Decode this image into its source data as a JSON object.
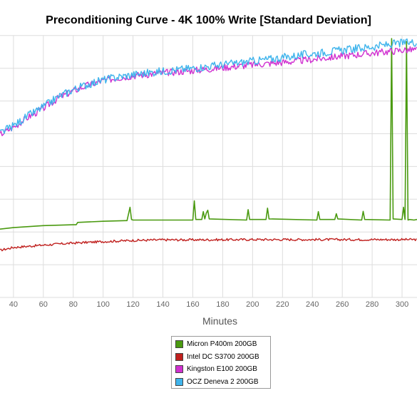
{
  "chart_data": {
    "type": "line",
    "title": "Preconditioning Curve - 4K 100% Write [Standard Deviation]",
    "xlabel": "Minutes",
    "ylabel": "",
    "x_ticks": [
      40,
      60,
      80,
      100,
      120,
      140,
      160,
      180,
      200,
      220,
      240,
      260,
      280,
      300
    ],
    "xlim": [
      31,
      310
    ],
    "ylim": [
      0,
      9
    ],
    "grid": true,
    "legend_position": "bottom-center",
    "series": [
      {
        "name": "Micron P400m 200GB",
        "color": "#4a9a10",
        "points": [
          [
            31,
            2.35
          ],
          [
            40,
            2.4
          ],
          [
            60,
            2.47
          ],
          [
            80,
            2.5
          ],
          [
            82,
            2.5
          ],
          [
            83,
            2.58
          ],
          [
            100,
            2.62
          ],
          [
            115,
            2.64
          ],
          [
            116,
            2.64
          ],
          [
            118,
            3.1
          ],
          [
            119,
            2.68
          ],
          [
            120,
            2.66
          ],
          [
            160,
            2.66
          ],
          [
            161,
            3.32
          ],
          [
            162,
            2.68
          ],
          [
            166,
            2.68
          ],
          [
            167,
            2.95
          ],
          [
            168,
            2.7
          ],
          [
            169,
            2.9
          ],
          [
            170,
            3.0
          ],
          [
            171,
            2.7
          ],
          [
            196,
            2.66
          ],
          [
            197,
            3.02
          ],
          [
            198,
            2.68
          ],
          [
            209,
            2.68
          ],
          [
            210,
            3.07
          ],
          [
            211,
            2.7
          ],
          [
            243,
            2.66
          ],
          [
            244,
            2.95
          ],
          [
            245,
            2.68
          ],
          [
            255,
            2.68
          ],
          [
            256,
            2.88
          ],
          [
            257,
            2.7
          ],
          [
            273,
            2.66
          ],
          [
            274,
            2.96
          ],
          [
            275,
            2.68
          ],
          [
            292,
            2.66
          ],
          [
            293,
            8.9
          ],
          [
            294,
            2.7
          ],
          [
            300,
            2.68
          ],
          [
            301,
            3.1
          ],
          [
            302,
            2.68
          ],
          [
            303,
            8.8
          ],
          [
            304,
            2.66
          ],
          [
            305,
            2.68
          ],
          [
            308,
            2.66
          ],
          [
            310,
            2.68
          ]
        ]
      },
      {
        "name": "Intel DC S3700 200GB",
        "color": "#c0201e",
        "points": [
          [
            31,
            1.62
          ],
          [
            40,
            1.72
          ],
          [
            60,
            1.8
          ],
          [
            80,
            1.87
          ],
          [
            100,
            1.92
          ],
          [
            120,
            1.96
          ],
          [
            140,
            1.98
          ],
          [
            160,
            1.98
          ],
          [
            200,
            1.99
          ],
          [
            250,
            1.99
          ],
          [
            310,
            1.99
          ]
        ]
      },
      {
        "name": "Kingston E100 200GB",
        "color": "#d030d0",
        "points": [
          [
            31,
            5.6
          ],
          [
            40,
            5.85
          ],
          [
            50,
            6.2
          ],
          [
            60,
            6.5
          ],
          [
            70,
            6.85
          ],
          [
            80,
            7.1
          ],
          [
            90,
            7.3
          ],
          [
            100,
            7.45
          ],
          [
            110,
            7.55
          ],
          [
            120,
            7.62
          ],
          [
            140,
            7.72
          ],
          [
            160,
            7.8
          ],
          [
            180,
            7.9
          ],
          [
            200,
            8.0
          ],
          [
            220,
            8.08
          ],
          [
            240,
            8.18
          ],
          [
            260,
            8.3
          ],
          [
            280,
            8.4
          ],
          [
            300,
            8.5
          ],
          [
            310,
            8.52
          ]
        ]
      },
      {
        "name": "OCZ Deneva 2 200GB",
        "color": "#3fb4ec",
        "points": [
          [
            31,
            5.65
          ],
          [
            40,
            5.9
          ],
          [
            50,
            6.25
          ],
          [
            60,
            6.55
          ],
          [
            70,
            6.9
          ],
          [
            80,
            7.15
          ],
          [
            90,
            7.33
          ],
          [
            100,
            7.48
          ],
          [
            110,
            7.58
          ],
          [
            120,
            7.66
          ],
          [
            140,
            7.78
          ],
          [
            160,
            7.88
          ],
          [
            180,
            8.0
          ],
          [
            200,
            8.12
          ],
          [
            220,
            8.25
          ],
          [
            240,
            8.38
          ],
          [
            260,
            8.5
          ],
          [
            280,
            8.62
          ],
          [
            300,
            8.75
          ],
          [
            310,
            8.78
          ]
        ]
      }
    ]
  }
}
